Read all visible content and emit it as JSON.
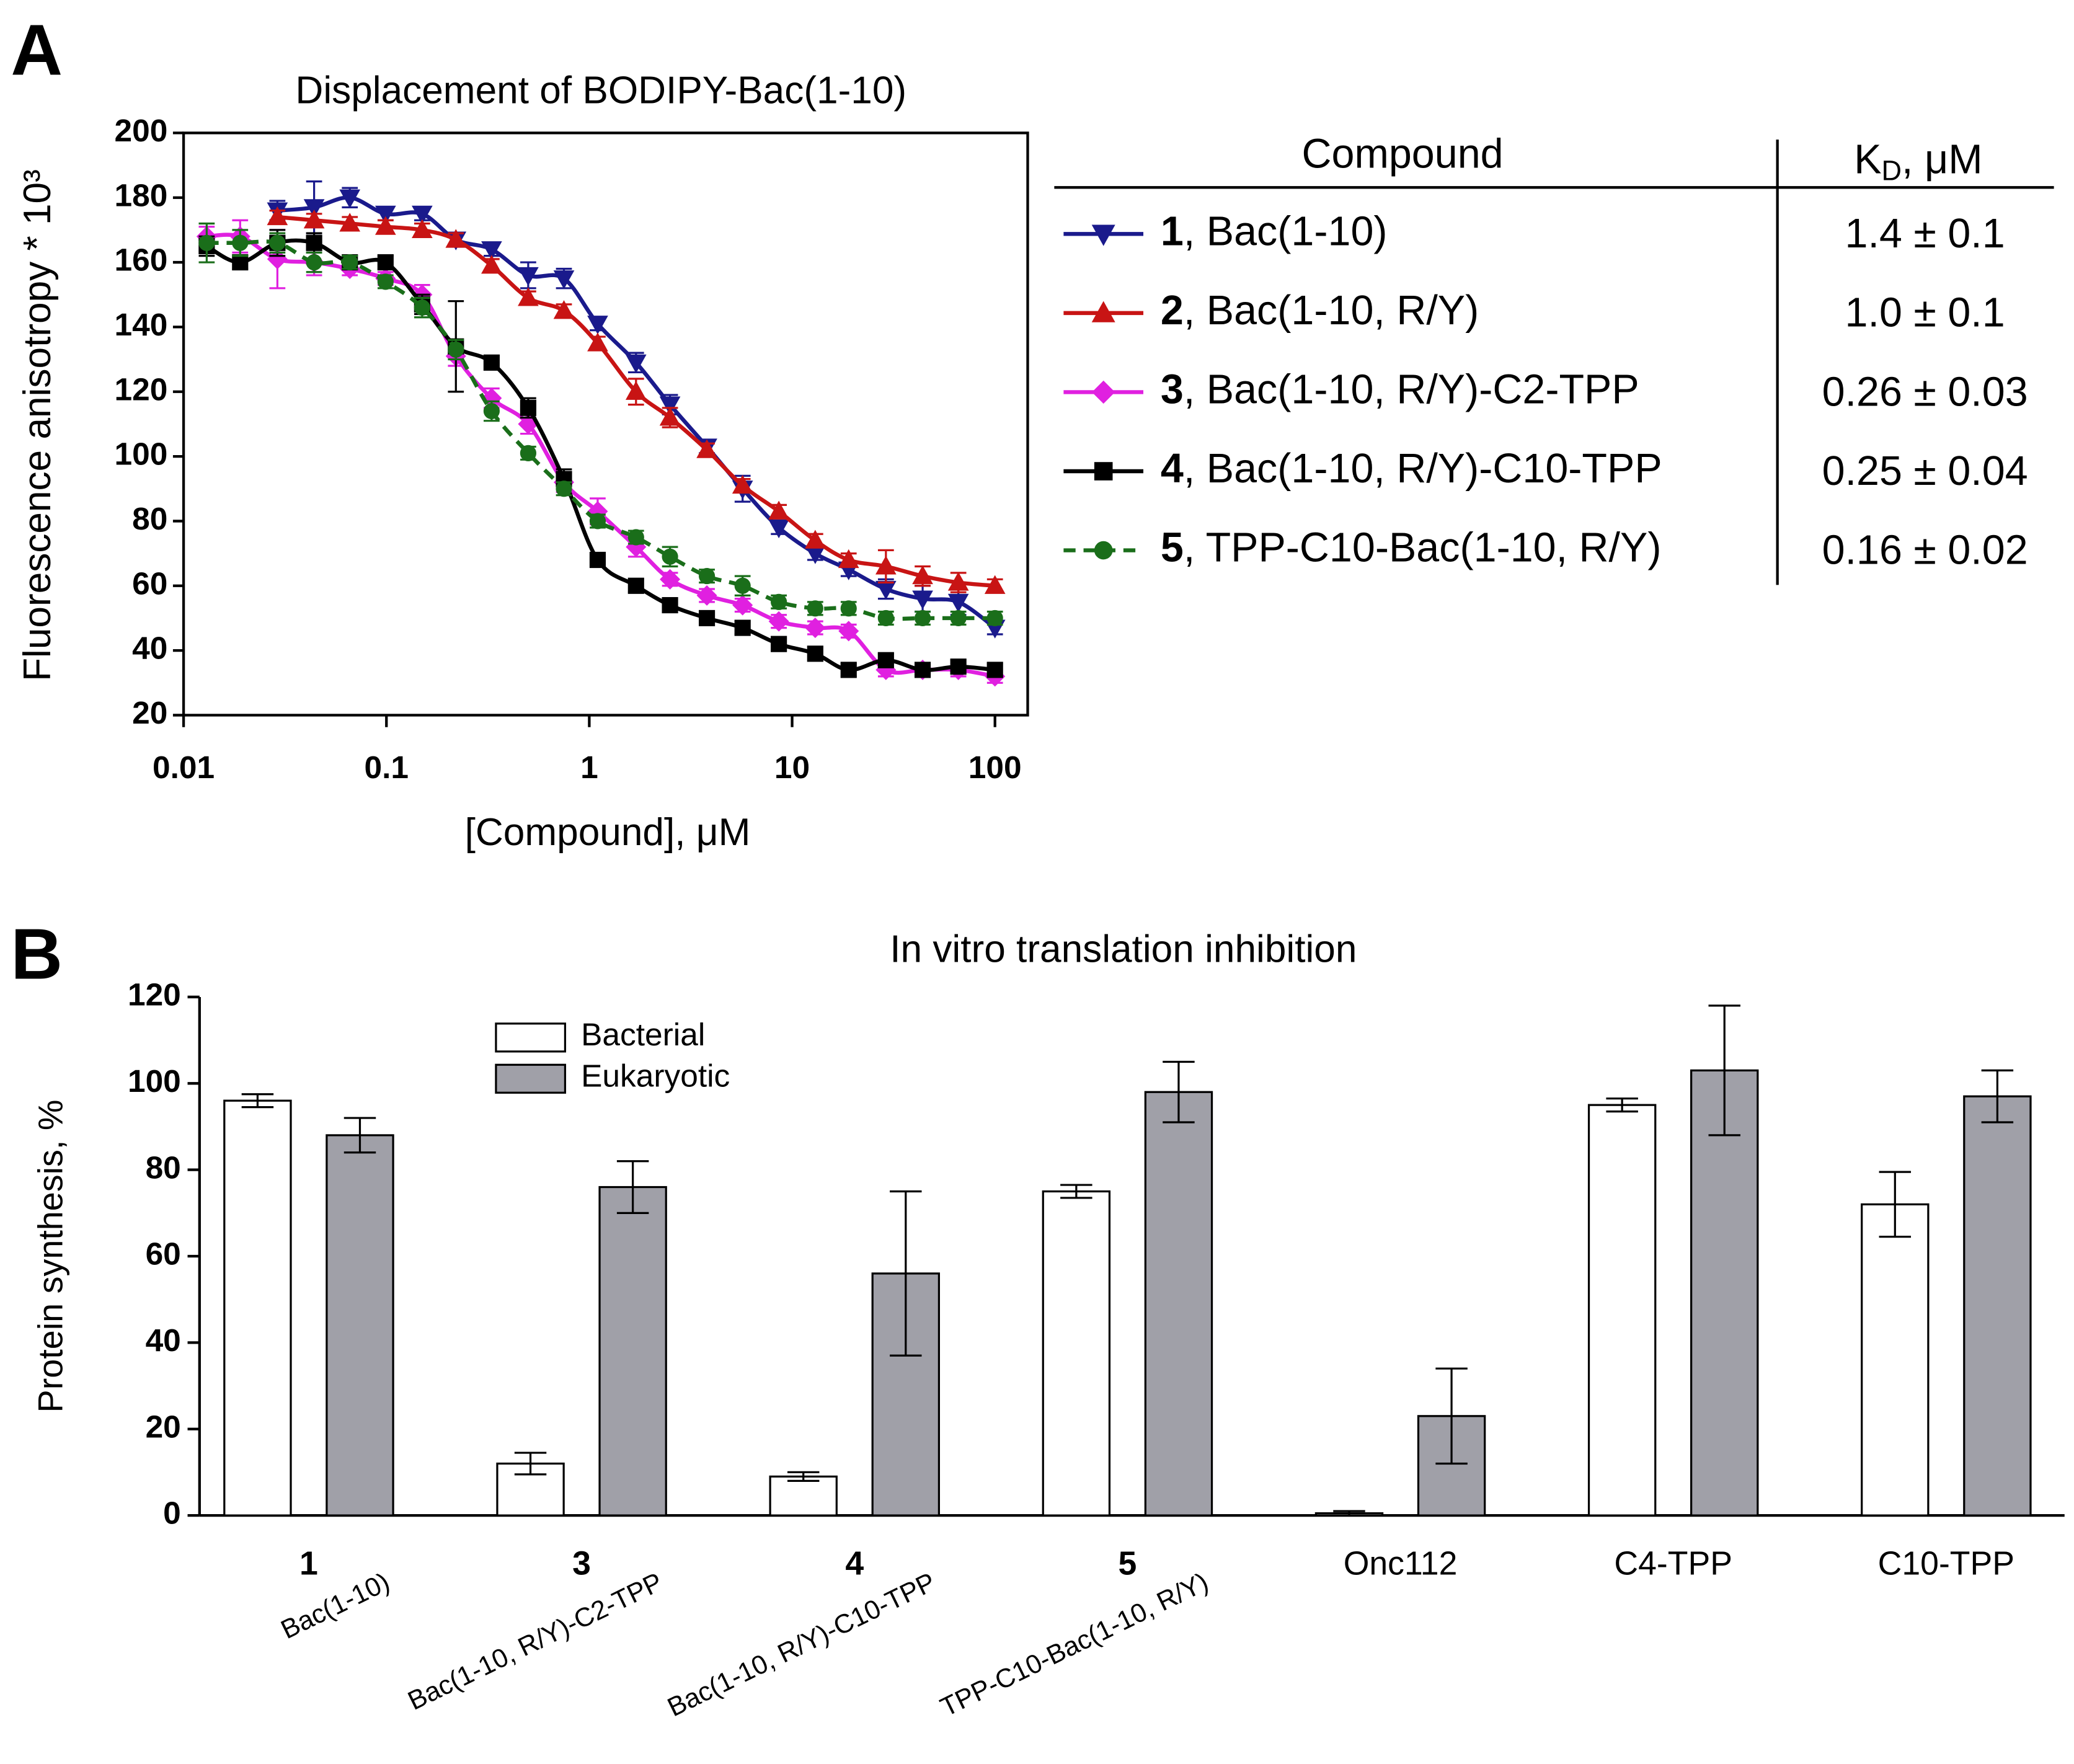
{
  "chart_data": [
    {
      "type": "line",
      "panel": "A",
      "title": "Displacement of BODIPY-Bac(1-10)",
      "x_label": "[Compound], μM",
      "y_label": "Fluorescence anisotropy * 10³",
      "log_x": true,
      "xlim": [
        0.01,
        145
      ],
      "xticks": [
        0.01,
        0.1,
        1,
        10,
        100
      ],
      "ylim": [
        20,
        200
      ],
      "yticks": [
        20,
        40,
        60,
        80,
        100,
        120,
        140,
        160,
        180,
        200
      ],
      "table_headers": [
        "Compound",
        "KD, μM"
      ],
      "series": [
        {
          "name": "1, Bac(1-10)",
          "kd": "1.4 ± 0.1",
          "color": "#1a1a8c",
          "marker": "triangle-down",
          "line_style": "solid",
          "x": [
            0.029,
            0.044,
            0.066,
            0.099,
            0.15,
            0.22,
            0.33,
            0.5,
            0.75,
            1.1,
            1.7,
            2.5,
            3.8,
            5.7,
            8.6,
            13,
            19,
            29,
            44,
            66,
            100
          ],
          "values": [
            176,
            177,
            180,
            175,
            175,
            167,
            164,
            156,
            155,
            141,
            129,
            116,
            103,
            90,
            78,
            70,
            65,
            59,
            56,
            55,
            47
          ],
          "errors": [
            3,
            8,
            3,
            2,
            2,
            2,
            2,
            4,
            3,
            2,
            3,
            3,
            2,
            4,
            2,
            2,
            2,
            3,
            4,
            4,
            2
          ]
        },
        {
          "name": "2, Bac(1-10, R/Y)",
          "kd": "1.0 ± 0.1",
          "color": "#c81414",
          "marker": "triangle-up",
          "line_style": "solid",
          "x": [
            0.029,
            0.044,
            0.066,
            0.099,
            0.15,
            0.22,
            0.33,
            0.5,
            0.75,
            1.1,
            1.7,
            2.5,
            3.8,
            5.7,
            8.6,
            13,
            19,
            29,
            44,
            66,
            100
          ],
          "values": [
            174,
            173,
            172,
            171,
            170,
            167,
            159,
            149,
            145,
            135,
            120,
            112,
            102,
            91,
            83,
            74,
            68,
            66,
            63,
            61,
            60
          ],
          "errors": [
            2,
            2,
            2,
            2,
            2,
            2,
            2,
            2,
            2,
            2,
            4,
            3,
            2,
            2,
            2,
            2,
            2,
            5,
            3,
            3,
            2
          ]
        },
        {
          "name": "3, Bac(1-10, R/Y)-C2-TPP",
          "kd": "0.26 ± 0.03",
          "color": "#e020e0",
          "marker": "diamond",
          "line_style": "solid",
          "x": [
            0.013,
            0.019,
            0.029,
            0.044,
            0.066,
            0.099,
            0.15,
            0.22,
            0.33,
            0.5,
            0.75,
            1.1,
            1.7,
            2.5,
            3.8,
            5.7,
            8.6,
            13,
            19,
            29,
            44,
            66,
            100
          ],
          "values": [
            168,
            168,
            161,
            160,
            158,
            155,
            150,
            131,
            118,
            110,
            92,
            83,
            72,
            62,
            57,
            54,
            49,
            47,
            46,
            34,
            34,
            34,
            32
          ],
          "errors": [
            3,
            5,
            9,
            4,
            2,
            2,
            3,
            3,
            3,
            3,
            3,
            4,
            3,
            2,
            2,
            2,
            2,
            2,
            2,
            2,
            2,
            2,
            2
          ]
        },
        {
          "name": "4, Bac(1-10, R/Y)-C10-TPP",
          "kd": "0.25 ± 0.04",
          "color": "#000000",
          "marker": "square",
          "line_style": "solid",
          "x": [
            0.013,
            0.019,
            0.029,
            0.044,
            0.066,
            0.099,
            0.15,
            0.22,
            0.33,
            0.5,
            0.75,
            1.1,
            1.7,
            2.5,
            3.8,
            5.7,
            8.6,
            13,
            19,
            29,
            44,
            66,
            100
          ],
          "values": [
            165,
            160,
            166,
            166,
            160,
            160,
            147,
            134,
            129,
            115,
            93,
            68,
            60,
            54,
            50,
            47,
            42,
            39,
            34,
            37,
            34,
            35,
            34
          ],
          "errors": [
            3,
            2,
            4,
            3,
            2,
            2,
            3,
            14,
            2,
            3,
            3,
            2,
            2,
            2,
            2,
            2,
            2,
            2,
            2,
            2,
            2,
            2,
            2
          ]
        },
        {
          "name": "5, TPP-C10-Bac(1-10, R/Y)",
          "kd": "0.16 ± 0.02",
          "color": "#1a6e1a",
          "marker": "circle",
          "line_style": "dashed",
          "x": [
            0.013,
            0.019,
            0.029,
            0.044,
            0.066,
            0.099,
            0.15,
            0.22,
            0.33,
            0.5,
            0.75,
            1.1,
            1.7,
            2.5,
            3.8,
            5.7,
            8.6,
            13,
            19,
            29,
            44,
            66,
            100
          ],
          "values": [
            166,
            166,
            166,
            160,
            160,
            154,
            146,
            133,
            114,
            101,
            90,
            80,
            75,
            69,
            63,
            60,
            55,
            53,
            53,
            50,
            50,
            50,
            50
          ],
          "errors": [
            6,
            4,
            3,
            3,
            2,
            2,
            3,
            3,
            3,
            2,
            2,
            2,
            2,
            3,
            2,
            3,
            2,
            2,
            2,
            2,
            2,
            2,
            2
          ]
        }
      ]
    },
    {
      "type": "bar",
      "panel": "B",
      "title": "In vitro translation inhibition",
      "y_label": "Protein synthesis, %",
      "ylim": [
        0,
        120
      ],
      "yticks": [
        0,
        20,
        40,
        60,
        80,
        100,
        120
      ],
      "legend": "top-left",
      "categories": [
        "1",
        "3",
        "4",
        "5",
        "Onc112",
        "C4-TPP",
        "C10-TPP"
      ],
      "sublabels": [
        "Bac(1-10)",
        "Bac(1-10, R/Y)-C2-TPP",
        "Bac(1-10, R/Y)-C10-TPP",
        "TPP-C10-Bac(1-10, R/Y)",
        null,
        null,
        null
      ],
      "series": [
        {
          "name": "Bacterial",
          "color": "#ffffff",
          "values": [
            96,
            12,
            9,
            75,
            0.5,
            95,
            72
          ],
          "errors": [
            1.5,
            2.5,
            1,
            1.5,
            0.5,
            1.5,
            7.5
          ]
        },
        {
          "name": "Eukaryotic",
          "color": "#a0a0a8",
          "values": [
            88,
            76,
            56,
            98,
            23,
            103,
            97
          ],
          "errors": [
            4,
            6,
            19,
            7,
            11,
            15,
            6
          ]
        }
      ]
    }
  ]
}
